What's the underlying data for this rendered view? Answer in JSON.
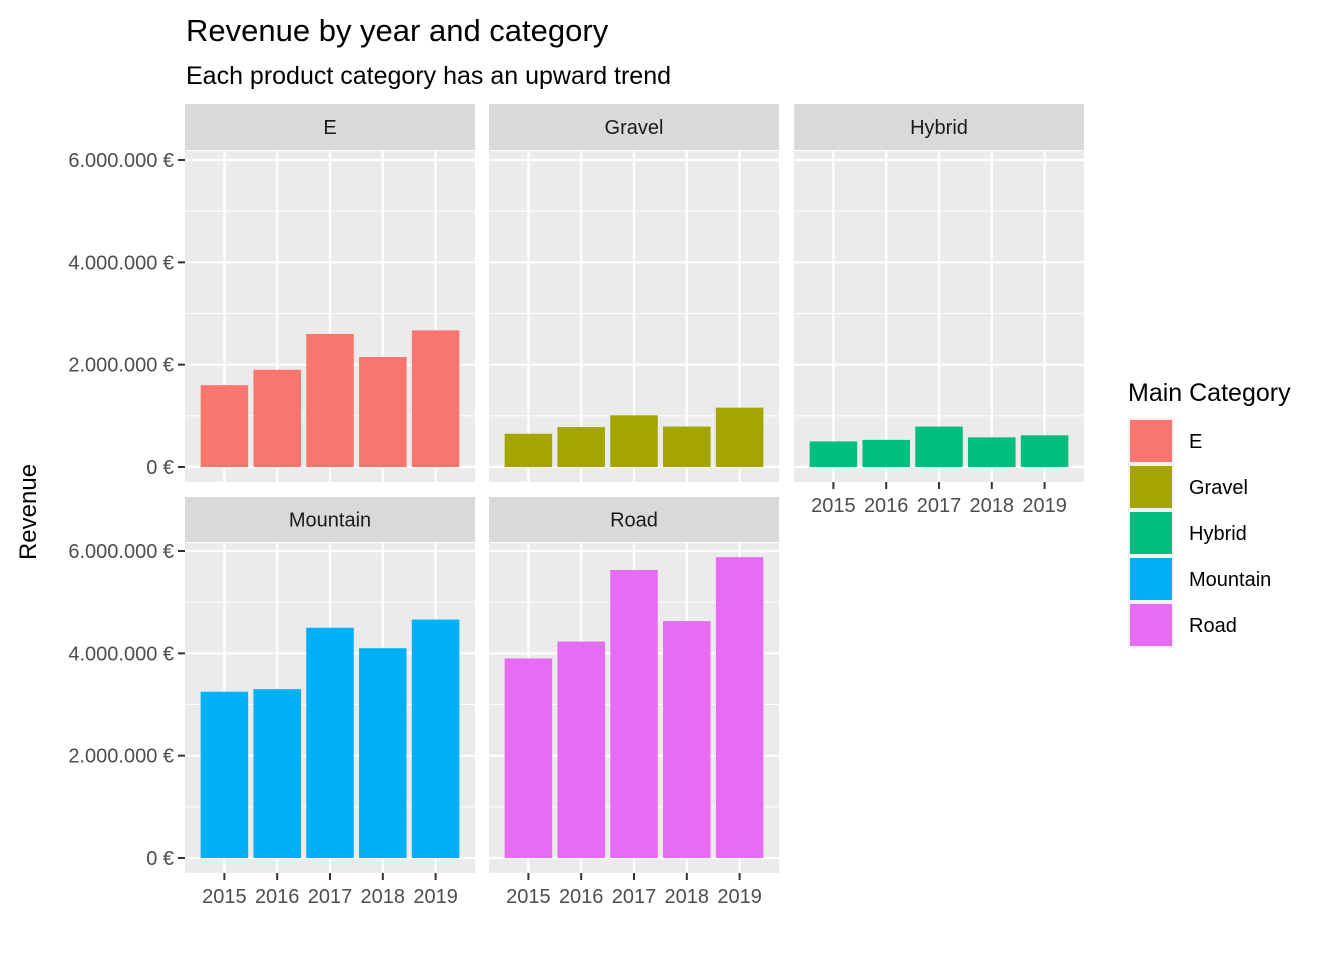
{
  "chart_data": {
    "type": "bar",
    "title": "Revenue by year and category",
    "subtitle": "Each product category has an upward trend",
    "ylabel": "Revenue",
    "xlabel": "",
    "ylim": [
      0,
      6000000
    ],
    "y_ticks": [
      0,
      2000000,
      4000000,
      6000000
    ],
    "y_tick_labels": [
      "0 €",
      "2.000.000 €",
      "4.000.000 €",
      "6.000.000 €"
    ],
    "categories": [
      "2015",
      "2016",
      "2017",
      "2018",
      "2019"
    ],
    "legend": {
      "title": "Main Category",
      "placement": "right"
    },
    "grid": true,
    "facets": [
      {
        "name": "E",
        "color": "#F8766D",
        "values": [
          1600000,
          1900000,
          2600000,
          2150000,
          2670000
        ]
      },
      {
        "name": "Gravel",
        "color": "#A3A500",
        "values": [
          650000,
          780000,
          1010000,
          790000,
          1160000
        ]
      },
      {
        "name": "Hybrid",
        "color": "#00BF7D",
        "values": [
          500000,
          530000,
          790000,
          580000,
          620000
        ]
      },
      {
        "name": "Mountain",
        "color": "#00B0F6",
        "values": [
          3250000,
          3300000,
          4500000,
          4100000,
          4660000
        ]
      },
      {
        "name": "Road",
        "color": "#E76BF3",
        "values": [
          3900000,
          4230000,
          5630000,
          4630000,
          5880000
        ]
      }
    ]
  }
}
